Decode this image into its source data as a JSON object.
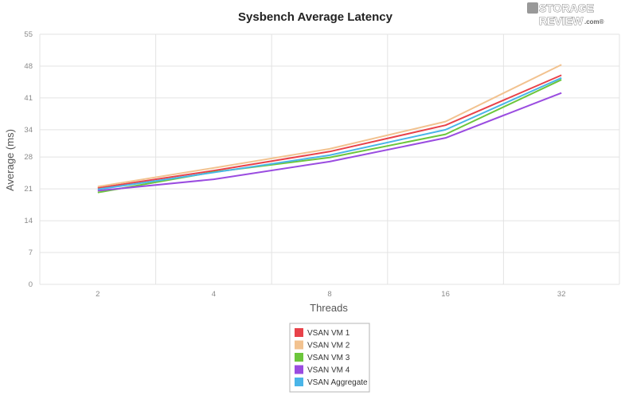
{
  "logo": {
    "line1": "STORAGE",
    "line2": "REVIEW",
    "suffix": ".com®"
  },
  "chart_data": {
    "type": "line",
    "title": "Sysbench Average Latency",
    "xlabel": "Threads",
    "ylabel": "Average (ms)",
    "categories": [
      "2",
      "4",
      "8",
      "16",
      "32"
    ],
    "yticks": [
      0,
      7,
      14,
      21,
      28,
      34,
      41,
      48,
      55
    ],
    "ylim": [
      0,
      55
    ],
    "grid": true,
    "legend_position": "bottom",
    "series": [
      {
        "name": "VSAN VM 1",
        "color": "#e8424a",
        "values": [
          21.2,
          25.0,
          29.2,
          35.0,
          46.0
        ]
      },
      {
        "name": "VSAN VM 2",
        "color": "#f2c28f",
        "values": [
          21.5,
          25.6,
          29.8,
          35.8,
          48.3
        ]
      },
      {
        "name": "VSAN VM 3",
        "color": "#6cc63c",
        "values": [
          20.2,
          24.7,
          27.9,
          33.0,
          45.0
        ]
      },
      {
        "name": "VSAN VM 4",
        "color": "#9a4ce0",
        "values": [
          20.6,
          23.1,
          27.0,
          32.2,
          42.1
        ]
      },
      {
        "name": "VSAN Aggregate",
        "color": "#4ab5e8",
        "values": [
          20.9,
          24.6,
          28.4,
          34.0,
          45.4
        ]
      }
    ]
  }
}
